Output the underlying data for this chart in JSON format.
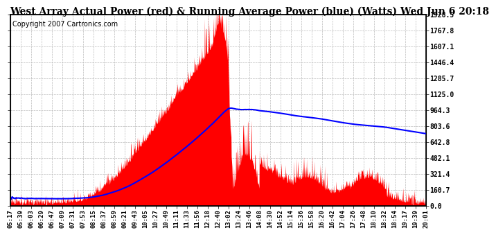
{
  "title": "West Array Actual Power (red) & Running Average Power (blue) (Watts) Wed Jun 6 20:18",
  "copyright": "Copyright 2007 Cartronics.com",
  "y_max": 1928.5,
  "y_min": 0.0,
  "y_ticks": [
    0.0,
    160.7,
    321.4,
    482.1,
    642.8,
    803.6,
    964.3,
    1125.0,
    1285.7,
    1446.4,
    1607.1,
    1767.8,
    1928.5
  ],
  "x_labels": [
    "05:17",
    "05:39",
    "06:03",
    "06:29",
    "06:47",
    "07:09",
    "07:31",
    "07:53",
    "08:15",
    "08:37",
    "08:59",
    "09:21",
    "09:43",
    "10:05",
    "10:27",
    "10:49",
    "11:11",
    "11:33",
    "11:56",
    "12:18",
    "12:40",
    "13:02",
    "13:24",
    "13:46",
    "14:08",
    "14:30",
    "14:52",
    "15:14",
    "15:36",
    "15:58",
    "16:20",
    "16:42",
    "17:04",
    "17:26",
    "17:48",
    "18:10",
    "18:32",
    "18:54",
    "19:17",
    "19:39",
    "20:01"
  ],
  "background_color": "#ffffff",
  "grid_color": "#bbbbbb",
  "actual_color": "#ff0000",
  "avg_color": "#0000ff",
  "title_fontsize": 10,
  "copyright_fontsize": 7,
  "n_points": 1200
}
